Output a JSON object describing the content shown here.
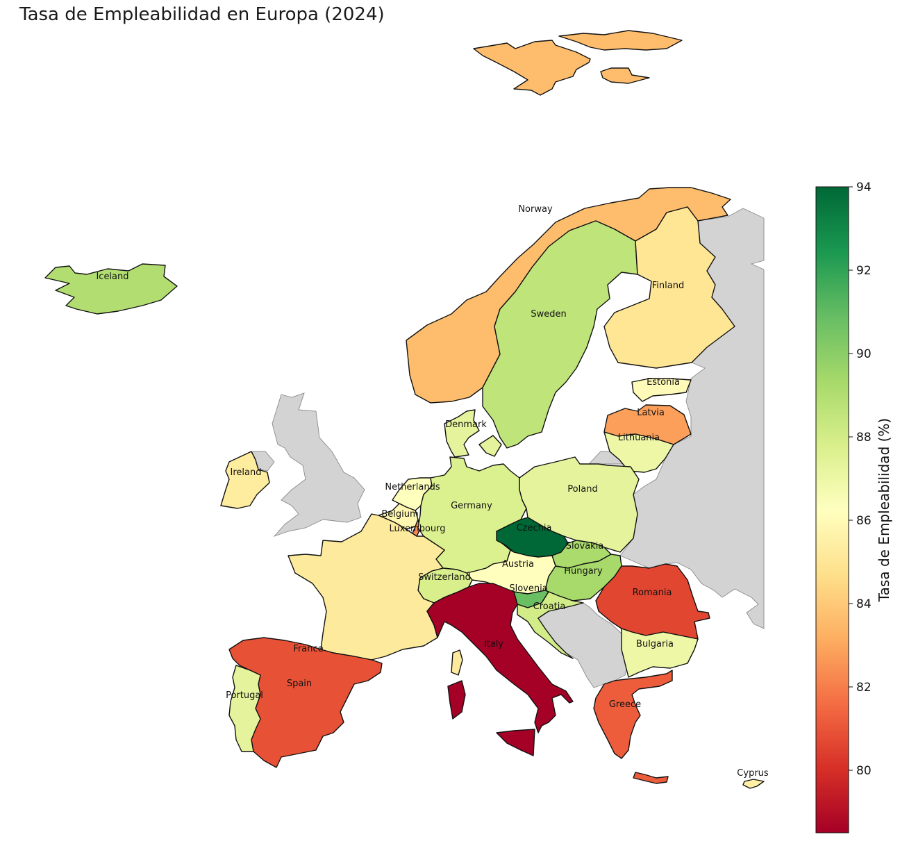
{
  "title": "Tasa de Empleabilidad en Europa (2024)",
  "colorbar": {
    "label": "Tasa de Empleabilidad (%)",
    "min": 78.5,
    "max": 94,
    "ticks": [
      "94",
      "92",
      "90",
      "88",
      "86",
      "84",
      "82",
      "80"
    ],
    "colormap": "RdYlGn",
    "stops": [
      "#a50026",
      "#d73027",
      "#f46d43",
      "#fdae61",
      "#fee08b",
      "#ffffbf",
      "#d9ef8b",
      "#a6d96a",
      "#66bd63",
      "#1a9850",
      "#006837"
    ]
  },
  "nodata_color": "#d3d3d3",
  "countries": [
    {
      "name": "Norway",
      "value": 83.6
    },
    {
      "name": "Sweden",
      "value": 88.6
    },
    {
      "name": "Finland",
      "value": 85.0
    },
    {
      "name": "Iceland",
      "value": 89.0
    },
    {
      "name": "Estonia",
      "value": 86.0
    },
    {
      "name": "Latvia",
      "value": 82.8
    },
    {
      "name": "Lithuania",
      "value": 87.0
    },
    {
      "name": "Denmark",
      "value": 87.3
    },
    {
      "name": "Ireland",
      "value": 85.3
    },
    {
      "name": "Netherlands",
      "value": 86.3
    },
    {
      "name": "Belgium",
      "value": 85.8
    },
    {
      "name": "Luxembourg",
      "value": 82.3
    },
    {
      "name": "Germany",
      "value": 87.7
    },
    {
      "name": "Poland",
      "value": 87.3
    },
    {
      "name": "Czechia",
      "value": 94.0
    },
    {
      "name": "Slovakia",
      "value": 89.2
    },
    {
      "name": "Austria",
      "value": 86.2
    },
    {
      "name": "Hungary",
      "value": 89.3
    },
    {
      "name": "Switzerland",
      "value": 87.8
    },
    {
      "name": "Slovenia",
      "value": 90.8
    },
    {
      "name": "Croatia",
      "value": 88.0
    },
    {
      "name": "France",
      "value": 85.2
    },
    {
      "name": "Italy",
      "value": 78.5
    },
    {
      "name": "Romania",
      "value": 80.6
    },
    {
      "name": "Bulgaria",
      "value": 87.0
    },
    {
      "name": "Spain",
      "value": 80.9
    },
    {
      "name": "Portugal",
      "value": 87.3
    },
    {
      "name": "Greece",
      "value": 81.2
    },
    {
      "name": "Cyprus",
      "value": 85.5
    }
  ]
}
